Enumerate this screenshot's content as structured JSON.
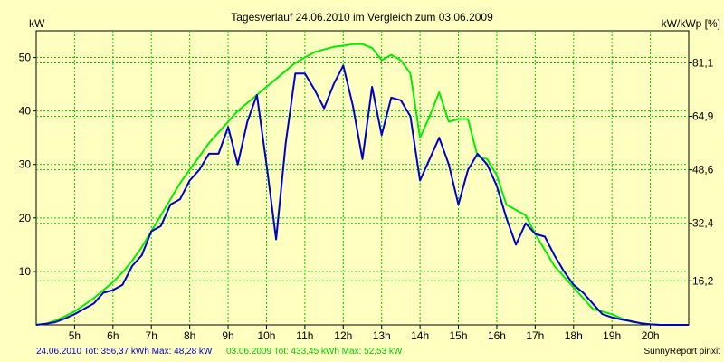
{
  "chart_data": {
    "type": "line",
    "title": "Tagesverlauf 24.06.2010 im Vergleich zum 03.06.2009",
    "ylabel_left": "kW",
    "ylabel_right": "kW/kWp [%]",
    "ylim": [
      0,
      55
    ],
    "xlim": [
      4.0,
      21.0
    ],
    "grid": true,
    "colors": {
      "background": "#ffffc0",
      "grid": "#00cc00",
      "series_2010": "#0000cc",
      "series_2009": "#00ee00"
    },
    "y_ticks_left": [
      {
        "value": 10,
        "label": "10"
      },
      {
        "value": 20,
        "label": "20"
      },
      {
        "value": 30,
        "label": "30"
      },
      {
        "value": 40,
        "label": "40"
      },
      {
        "value": 50,
        "label": "50"
      }
    ],
    "y_ticks_right": [
      {
        "value": 8.25,
        "label": "16,2"
      },
      {
        "value": 19.0,
        "label": "32,4"
      },
      {
        "value": 29.0,
        "label": "48,6"
      },
      {
        "value": 39.0,
        "label": "64,9"
      },
      {
        "value": 49.0,
        "label": "81,1"
      }
    ],
    "x_ticks": [
      {
        "value": 5,
        "label": "5h"
      },
      {
        "value": 6,
        "label": "6h"
      },
      {
        "value": 7,
        "label": "7h"
      },
      {
        "value": 8,
        "label": "8h"
      },
      {
        "value": 9,
        "label": "9h"
      },
      {
        "value": 10,
        "label": "10h"
      },
      {
        "value": 11,
        "label": "11h"
      },
      {
        "value": 12,
        "label": "12h"
      },
      {
        "value": 13,
        "label": "13h"
      },
      {
        "value": 14,
        "label": "14h"
      },
      {
        "value": 15,
        "label": "15h"
      },
      {
        "value": 16,
        "label": "16h"
      },
      {
        "value": 17,
        "label": "17h"
      },
      {
        "value": 18,
        "label": "18h"
      },
      {
        "value": 19,
        "label": "19h"
      },
      {
        "value": 20,
        "label": "20h"
      }
    ],
    "series": [
      {
        "name": "24.06.2010",
        "color": "#0000cc",
        "x": [
          4.0,
          4.25,
          4.5,
          4.75,
          5.0,
          5.25,
          5.5,
          5.75,
          6.0,
          6.25,
          6.5,
          6.75,
          7.0,
          7.25,
          7.5,
          7.75,
          8.0,
          8.25,
          8.5,
          8.75,
          9.0,
          9.25,
          9.5,
          9.75,
          10.0,
          10.25,
          10.5,
          10.75,
          11.0,
          11.25,
          11.5,
          11.75,
          12.0,
          12.25,
          12.5,
          12.75,
          13.0,
          13.25,
          13.5,
          13.75,
          14.0,
          14.25,
          14.5,
          14.75,
          15.0,
          15.25,
          15.5,
          15.75,
          16.0,
          16.25,
          16.5,
          16.75,
          17.0,
          17.25,
          17.5,
          17.75,
          18.0,
          18.25,
          18.5,
          18.75,
          19.0,
          19.25,
          19.5,
          19.75,
          20.0,
          20.25,
          20.5,
          20.75,
          21.0
        ],
        "y": [
          0.0,
          0.2,
          0.5,
          1.2,
          2.0,
          3.0,
          4.0,
          6.0,
          6.5,
          7.5,
          11.0,
          13.0,
          17.5,
          18.5,
          22.5,
          23.5,
          27.0,
          29.0,
          32.0,
          32.0,
          37.0,
          30.0,
          38.0,
          43.0,
          30.0,
          16.0,
          34.0,
          47.0,
          47.0,
          44.0,
          40.5,
          45.0,
          48.5,
          41.0,
          31.0,
          44.5,
          35.5,
          42.5,
          42.0,
          39.0,
          27.0,
          31.0,
          35.0,
          30.0,
          22.5,
          29.0,
          32.0,
          30.0,
          26.0,
          20.0,
          15.0,
          19.0,
          17.0,
          16.5,
          13.0,
          10.0,
          7.5,
          6.0,
          4.0,
          2.0,
          1.4,
          1.0,
          0.7,
          0.3,
          0.1,
          0.0,
          0.0,
          0.0,
          0.0
        ]
      },
      {
        "name": "03.06.2009",
        "color": "#00ee00",
        "x": [
          4.0,
          4.25,
          4.5,
          4.75,
          5.0,
          5.25,
          5.5,
          5.75,
          6.0,
          6.25,
          6.5,
          6.75,
          7.0,
          7.25,
          7.5,
          7.75,
          8.0,
          8.25,
          8.5,
          8.75,
          9.0,
          9.25,
          9.5,
          9.75,
          10.0,
          10.25,
          10.5,
          10.75,
          11.0,
          11.25,
          11.5,
          11.75,
          12.0,
          12.25,
          12.5,
          12.75,
          13.0,
          13.25,
          13.5,
          13.75,
          14.0,
          14.25,
          14.5,
          14.75,
          15.0,
          15.25,
          15.5,
          15.75,
          16.0,
          16.25,
          16.5,
          16.75,
          17.0,
          17.25,
          17.5,
          17.75,
          18.0,
          18.25,
          18.5,
          18.75,
          19.0,
          19.25,
          19.5,
          19.75,
          20.0,
          20.25,
          20.5,
          20.75,
          21.0
        ],
        "y": [
          0.0,
          0.2,
          0.8,
          1.6,
          2.5,
          3.7,
          5.0,
          6.5,
          8.0,
          9.8,
          12.0,
          14.5,
          17.5,
          20.5,
          23.5,
          26.5,
          29.0,
          31.5,
          34.0,
          36.0,
          38.0,
          40.0,
          41.5,
          43.0,
          44.5,
          46.0,
          47.5,
          49.0,
          50.0,
          51.0,
          51.5,
          52.0,
          52.2,
          52.5,
          52.5,
          51.8,
          49.5,
          50.5,
          49.5,
          47.0,
          35.0,
          39.0,
          43.5,
          38.0,
          38.5,
          38.5,
          31.5,
          31.0,
          28.0,
          22.5,
          21.5,
          20.5,
          17.0,
          14.0,
          11.0,
          9.0,
          7.0,
          5.0,
          3.0,
          2.5,
          2.0,
          1.2,
          0.6,
          0.3,
          0.1,
          0.0,
          0.0,
          0.0,
          0.0
        ]
      }
    ]
  },
  "footer": {
    "series1_summary": "24.06.2010 Tot: 356,37 kWh Max: 48,28 kW",
    "series2_summary": "03.06.2009 Tot: 433,45 kWh Max: 52,53 kW",
    "credit": "SunnyReport pinxit"
  }
}
